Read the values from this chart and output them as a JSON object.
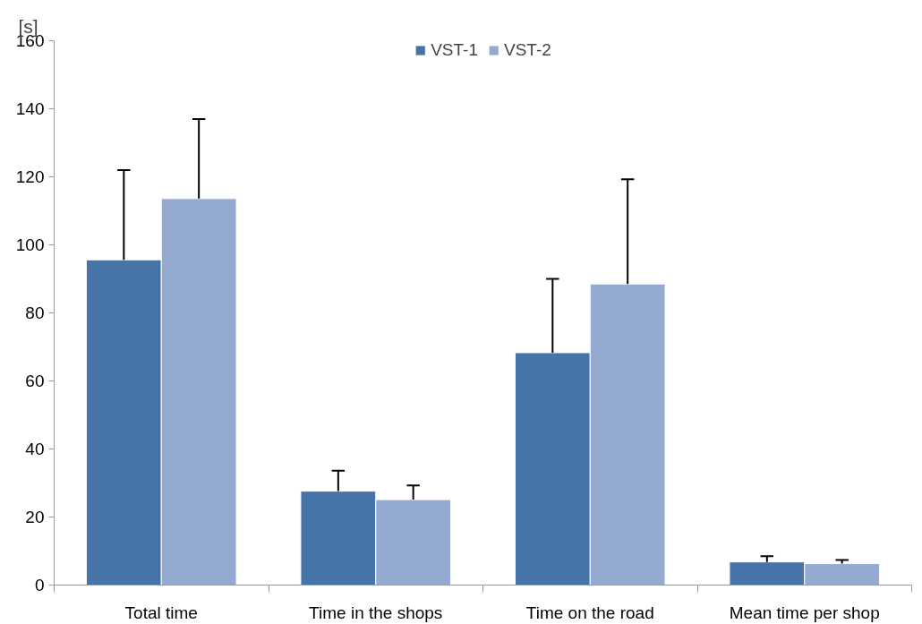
{
  "chart_data": {
    "type": "bar",
    "ylabel": "[s]",
    "categories": [
      "Total time",
      "Time in the shops",
      "Time on the road",
      "Mean time per shop"
    ],
    "series": [
      {
        "name": "VST-1",
        "color": "#4674a8",
        "values": [
          95.6,
          27.6,
          68.3,
          6.8
        ],
        "errors": [
          [
            95.6,
            122
          ],
          [
            27.6,
            33.6
          ],
          [
            68.3,
            90
          ],
          [
            6.8,
            8.5
          ]
        ]
      },
      {
        "name": "VST-2",
        "color": "#95aad0",
        "values": [
          113.6,
          25.1,
          88.5,
          6.3
        ],
        "errors": [
          [
            113.6,
            137
          ],
          [
            25.1,
            29.3
          ],
          [
            88.5,
            119.3
          ],
          [
            6.3,
            7.4
          ]
        ]
      }
    ],
    "ylim": [
      0,
      160
    ],
    "yticks": [
      0,
      20,
      40,
      60,
      80,
      100,
      120,
      140,
      160
    ],
    "grid": false,
    "legend": "top"
  }
}
